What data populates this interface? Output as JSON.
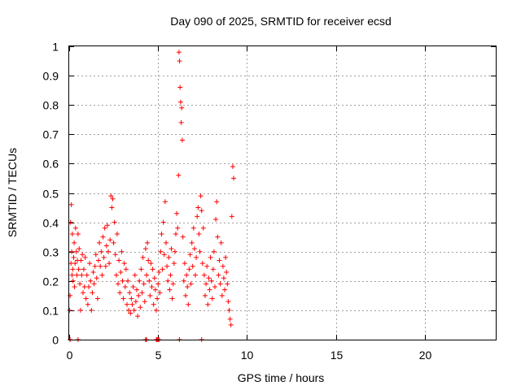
{
  "chart_data": {
    "type": "scatter",
    "title": "Day 090 of 2025, SRMTID for receiver ecsd",
    "xlabel": "GPS time / hours",
    "ylabel": "SRMTID / TECUs",
    "xlim": [
      0,
      24
    ],
    "ylim": [
      0,
      1
    ],
    "grid": true,
    "marker": "+",
    "series": [
      {
        "name": "SRMTID",
        "color": "#ff0000",
        "points": [
          [
            0.02,
            0.1
          ],
          [
            0.05,
            0.15
          ],
          [
            0.08,
            0.4
          ],
          [
            0.1,
            0.26
          ],
          [
            0.12,
            0.46
          ],
          [
            0.14,
            0.3
          ],
          [
            0.16,
            0.22
          ],
          [
            0.18,
            0.36
          ],
          [
            0.2,
            0.24
          ],
          [
            0.22,
            0.2
          ],
          [
            0.25,
            0.28
          ],
          [
            0.28,
            0.33
          ],
          [
            0.3,
            0.18
          ],
          [
            0.33,
            0.26
          ],
          [
            0.36,
            0.38
          ],
          [
            0.4,
            0.3
          ],
          [
            0.43,
            0.22
          ],
          [
            0.46,
            0.27
          ],
          [
            0.5,
            0.36
          ],
          [
            0.53,
            0.24
          ],
          [
            0.56,
            0.31
          ],
          [
            0.6,
            0.19
          ],
          [
            0.63,
            0.1
          ],
          [
            0.66,
            0.27
          ],
          [
            0.7,
            0.22
          ],
          [
            0.74,
            0.29
          ],
          [
            0.78,
            0.16
          ],
          [
            0.82,
            0.24
          ],
          [
            0.86,
            0.18
          ],
          [
            0.9,
            0.28
          ],
          [
            0.95,
            0.14
          ],
          [
            1.0,
            0.22
          ],
          [
            1.05,
            0.12
          ],
          [
            1.1,
            0.18
          ],
          [
            1.15,
            0.26
          ],
          [
            1.2,
            0.2
          ],
          [
            1.25,
            0.1
          ],
          [
            1.3,
            0.16
          ],
          [
            1.35,
            0.23
          ],
          [
            1.4,
            0.19
          ],
          [
            1.45,
            0.25
          ],
          [
            1.5,
            0.29
          ],
          [
            1.55,
            0.21
          ],
          [
            1.6,
            0.14
          ],
          [
            1.65,
            0.27
          ],
          [
            1.7,
            0.33
          ],
          [
            1.75,
            0.25
          ],
          [
            1.8,
            0.3
          ],
          [
            1.85,
            0.22
          ],
          [
            1.9,
            0.35
          ],
          [
            1.95,
            0.28
          ],
          [
            2.0,
            0.38
          ],
          [
            2.05,
            0.25
          ],
          [
            2.1,
            0.32
          ],
          [
            2.15,
            0.39
          ],
          [
            2.2,
            0.3
          ],
          [
            2.25,
            0.26
          ],
          [
            2.3,
            0.34
          ],
          [
            2.35,
            0.49
          ],
          [
            2.4,
            0.45
          ],
          [
            2.45,
            0.48
          ],
          [
            2.5,
            0.33
          ],
          [
            2.55,
            0.4
          ],
          [
            2.6,
            0.29
          ],
          [
            2.65,
            0.22
          ],
          [
            2.7,
            0.36
          ],
          [
            2.75,
            0.19
          ],
          [
            2.8,
            0.27
          ],
          [
            2.85,
            0.16
          ],
          [
            2.9,
            0.23
          ],
          [
            2.95,
            0.3
          ],
          [
            3.0,
            0.2
          ],
          [
            3.05,
            0.14
          ],
          [
            3.1,
            0.26
          ],
          [
            3.15,
            0.18
          ],
          [
            3.2,
            0.24
          ],
          [
            3.25,
            0.12
          ],
          [
            3.3,
            0.2
          ],
          [
            3.35,
            0.1
          ],
          [
            3.4,
            0.16
          ],
          [
            3.45,
            0.09
          ],
          [
            3.5,
            0.14
          ],
          [
            3.55,
            0.12
          ],
          [
            3.6,
            0.18
          ],
          [
            3.65,
            0.1
          ],
          [
            3.7,
            0.22
          ],
          [
            3.75,
            0.13
          ],
          [
            3.8,
            0.17
          ],
          [
            3.85,
            0.08
          ],
          [
            3.9,
            0.15
          ],
          [
            3.95,
            0.2
          ],
          [
            4.0,
            0.11
          ],
          [
            4.05,
            0.24
          ],
          [
            4.1,
            0.16
          ],
          [
            4.15,
            0.28
          ],
          [
            4.2,
            0.19
          ],
          [
            4.25,
            0.13
          ],
          [
            4.3,
            0.31
          ],
          [
            4.35,
            0.22
          ],
          [
            4.4,
            0.33
          ],
          [
            4.45,
            0.27
          ],
          [
            4.5,
            0.2
          ],
          [
            4.55,
            0.15
          ],
          [
            4.6,
            0.26
          ],
          [
            4.65,
            0.18
          ],
          [
            4.7,
            0.24
          ],
          [
            4.75,
            0.12
          ],
          [
            4.8,
            0.21
          ],
          [
            4.85,
            0.17
          ],
          [
            4.9,
            0.1
          ],
          [
            4.95,
            0.14
          ],
          [
            5.0,
            0.19
          ],
          [
            5.05,
            0.23
          ],
          [
            5.1,
            0.16
          ],
          [
            5.15,
            0.3
          ],
          [
            5.2,
            0.36
          ],
          [
            5.25,
            0.24
          ],
          [
            5.3,
            0.4
          ],
          [
            5.35,
            0.29
          ],
          [
            5.4,
            0.47
          ],
          [
            5.45,
            0.33
          ],
          [
            5.5,
            0.25
          ],
          [
            5.55,
            0.2
          ],
          [
            5.6,
            0.28
          ],
          [
            5.65,
            0.17
          ],
          [
            5.7,
            0.22
          ],
          [
            5.75,
            0.31
          ],
          [
            5.8,
            0.14
          ],
          [
            5.85,
            0.19
          ],
          [
            5.9,
            0.26
          ],
          [
            5.95,
            0.3
          ],
          [
            6.0,
            0.36
          ],
          [
            6.05,
            0.43
          ],
          [
            6.1,
            0.38
          ],
          [
            6.15,
            0.56
          ],
          [
            6.18,
            0.98
          ],
          [
            6.21,
            0.95
          ],
          [
            6.24,
            0.86
          ],
          [
            6.27,
            0.81
          ],
          [
            6.3,
            0.74
          ],
          [
            6.33,
            0.79
          ],
          [
            6.36,
            0.68
          ],
          [
            6.4,
            0.35
          ],
          [
            6.45,
            0.2
          ],
          [
            6.5,
            0.26
          ],
          [
            6.55,
            0.15
          ],
          [
            6.6,
            0.22
          ],
          [
            6.65,
            0.18
          ],
          [
            6.7,
            0.12
          ],
          [
            6.75,
            0.24
          ],
          [
            6.8,
            0.29
          ],
          [
            6.85,
            0.19
          ],
          [
            6.9,
            0.33
          ],
          [
            6.95,
            0.25
          ],
          [
            7.0,
            0.38
          ],
          [
            7.05,
            0.31
          ],
          [
            7.1,
            0.22
          ],
          [
            7.15,
            0.28
          ],
          [
            7.2,
            0.42
          ],
          [
            7.25,
            0.45
          ],
          [
            7.3,
            0.36
          ],
          [
            7.35,
            0.3
          ],
          [
            7.4,
            0.49
          ],
          [
            7.45,
            0.44
          ],
          [
            7.5,
            0.26
          ],
          [
            7.55,
            0.38
          ],
          [
            7.6,
            0.22
          ],
          [
            7.65,
            0.15
          ],
          [
            7.7,
            0.19
          ],
          [
            7.75,
            0.25
          ],
          [
            7.8,
            0.12
          ],
          [
            7.85,
            0.21
          ],
          [
            7.9,
            0.17
          ],
          [
            7.95,
            0.28
          ],
          [
            8.0,
            0.2
          ],
          [
            8.05,
            0.14
          ],
          [
            8.1,
            0.24
          ],
          [
            8.15,
            0.3
          ],
          [
            8.2,
            0.18
          ],
          [
            8.25,
            0.41
          ],
          [
            8.3,
            0.47
          ],
          [
            8.35,
            0.35
          ],
          [
            8.4,
            0.22
          ],
          [
            8.45,
            0.27
          ],
          [
            8.5,
            0.19
          ],
          [
            8.55,
            0.33
          ],
          [
            8.6,
            0.15
          ],
          [
            8.65,
            0.25
          ],
          [
            8.7,
            0.21
          ],
          [
            8.75,
            0.17
          ],
          [
            8.8,
            0.28
          ],
          [
            8.85,
            0.23
          ],
          [
            8.9,
            0.19
          ],
          [
            8.95,
            0.13
          ],
          [
            9.0,
            0.1
          ],
          [
            9.05,
            0.07
          ],
          [
            9.1,
            0.05
          ],
          [
            9.15,
            0.42
          ],
          [
            9.2,
            0.59
          ],
          [
            9.25,
            0.55
          ]
        ],
        "zero_points": [
          0.05,
          0.5,
          4.3,
          4.35,
          4.9,
          4.95,
          5.0,
          5.05,
          6.2,
          7.45
        ]
      }
    ]
  }
}
